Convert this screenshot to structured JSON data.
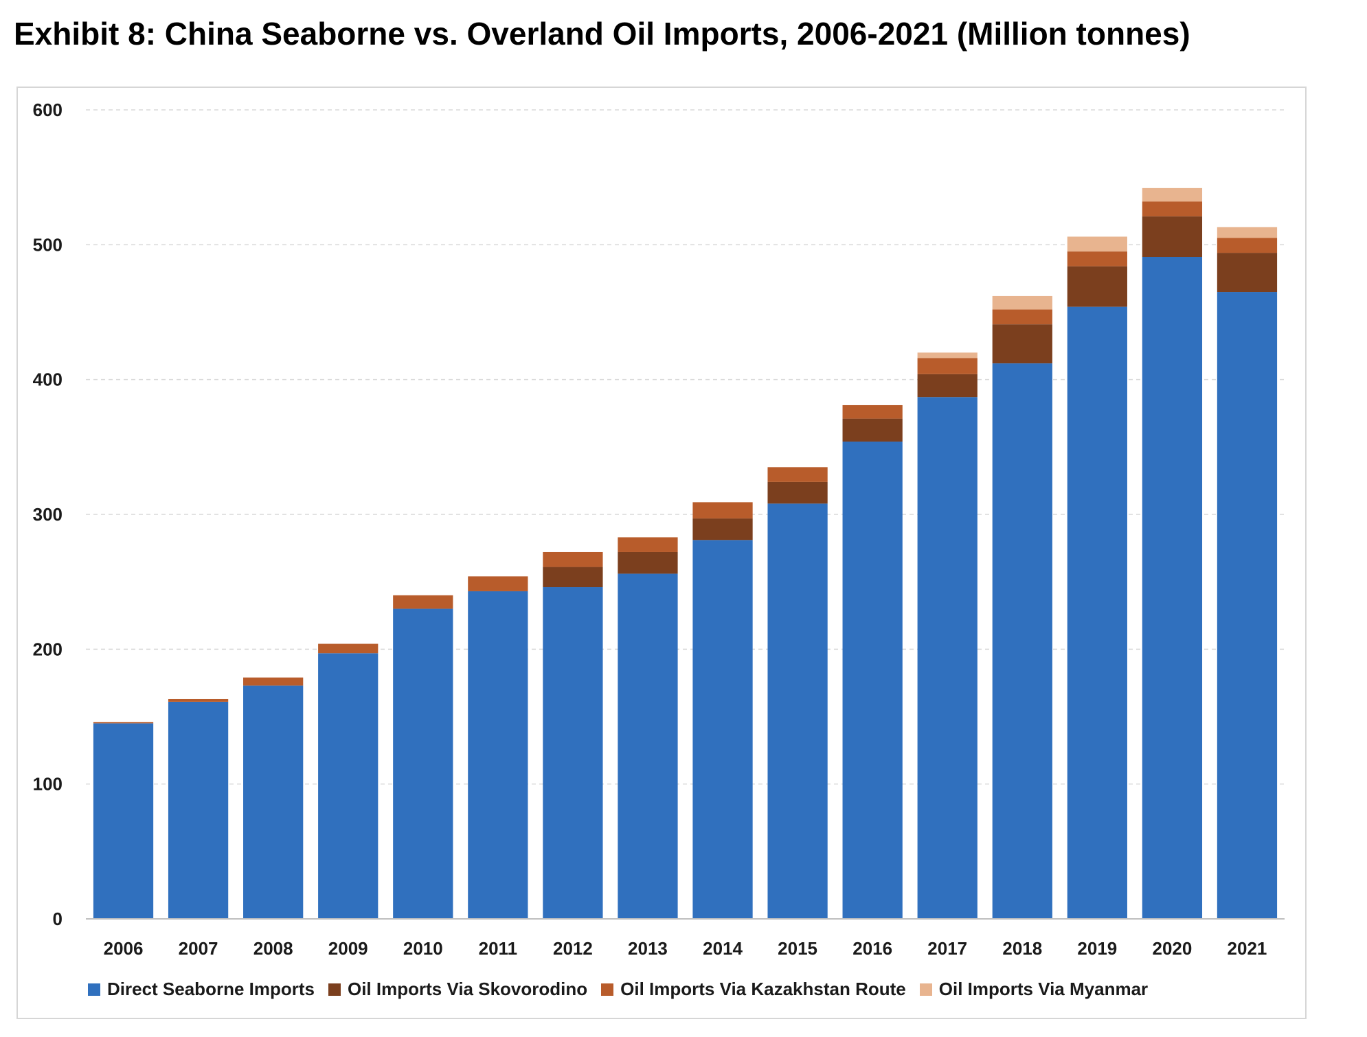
{
  "title": "Exhibit 8: China Seaborne vs. Overland Oil Imports, 2006-2021 (Million tonnes)",
  "chart_data": {
    "type": "bar",
    "stacked": true,
    "categories": [
      "2006",
      "2007",
      "2008",
      "2009",
      "2010",
      "2011",
      "2012",
      "2013",
      "2014",
      "2015",
      "2016",
      "2017",
      "2018",
      "2019",
      "2020",
      "2021"
    ],
    "ylim": [
      0,
      600
    ],
    "yticks": [
      0,
      100,
      200,
      300,
      400,
      500,
      600
    ],
    "grid": true,
    "legend_position": "bottom",
    "series": [
      {
        "name": "Direct Seaborne Imports",
        "color": "#3070be",
        "values": [
          145,
          161,
          173,
          197,
          230,
          243,
          246,
          256,
          281,
          308,
          354,
          387,
          412,
          454,
          491,
          465
        ]
      },
      {
        "name": "Oil Imports Via Skovorodino",
        "color": "#7b3f1e",
        "values": [
          0,
          0,
          0,
          0,
          0,
          0,
          15,
          16,
          16,
          16,
          17,
          17,
          29,
          30,
          30,
          29
        ]
      },
      {
        "name": "Oil Imports Via Kazakhstan Route",
        "color": "#b85c2b",
        "values": [
          1,
          2,
          6,
          7,
          10,
          11,
          11,
          11,
          12,
          11,
          10,
          12,
          11,
          11,
          11,
          11
        ]
      },
      {
        "name": "Oil Imports Via Myanmar",
        "color": "#e8b48f",
        "values": [
          0,
          0,
          0,
          0,
          0,
          0,
          0,
          0,
          0,
          0,
          0,
          4,
          10,
          11,
          10,
          8
        ]
      }
    ]
  }
}
